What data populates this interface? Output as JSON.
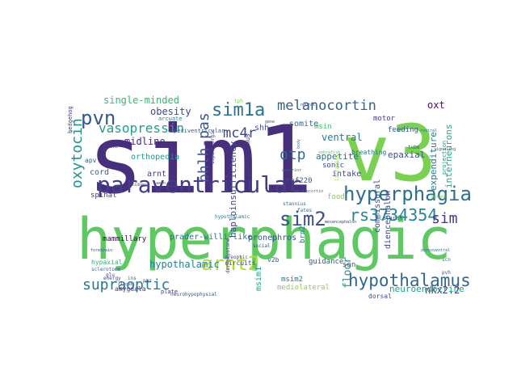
{
  "words": [
    {
      "text": "sim1",
      "color": "#472f7d"
    },
    {
      "text": "hyperphagic",
      "color": "#5ec962"
    },
    {
      "text": "v3",
      "color": "#7ad151"
    },
    {
      "text": "paraventricular",
      "color": "#433e85"
    },
    {
      "text": "hyperphagia",
      "color": "#2d708e"
    },
    {
      "text": "arnt2",
      "color": "#addc30"
    },
    {
      "text": "sim2",
      "color": "#3b518b"
    },
    {
      "text": "sim1a",
      "color": "#2c728e"
    },
    {
      "text": "pvn",
      "color": "#38588c"
    },
    {
      "text": "melanocortin",
      "color": "#33638d"
    },
    {
      "text": "rs3734354",
      "color": "#25848e"
    },
    {
      "text": "hypothalamus",
      "color": "#31688e"
    },
    {
      "text": "supraoptic",
      "color": "#2a788e"
    },
    {
      "text": "oxytocin",
      "color": "#21918c"
    },
    {
      "text": "vasopressin",
      "color": "#1f9e89"
    },
    {
      "text": "bhlh-pas",
      "color": "#3b528b"
    },
    {
      "text": "mc4r",
      "color": "#414487"
    },
    {
      "text": "otp",
      "color": "#31688e"
    },
    {
      "text": "sim",
      "color": "#443983"
    },
    {
      "text": "obesity",
      "color": "#3e4a89"
    },
    {
      "text": "single-minded",
      "color": "#35b779"
    },
    {
      "text": "midline",
      "color": "#482878"
    },
    {
      "text": "hypothalamic",
      "color": "#26828e"
    },
    {
      "text": "floor",
      "color": "#1f9a8a"
    },
    {
      "text": "nkx2.2",
      "color": "#46337f"
    },
    {
      "text": "expenditure",
      "color": "#287c8e"
    },
    {
      "text": "interneurons",
      "color": "#22a884"
    },
    {
      "text": "ventral",
      "color": "#2a788e"
    },
    {
      "text": "oxt",
      "color": "#471063"
    },
    {
      "text": "appetite",
      "color": "#2e6f8e"
    },
    {
      "text": "epaxial",
      "color": "#3b528b"
    },
    {
      "text": "intake",
      "color": "#404588"
    },
    {
      "text": "haploinsufficiency",
      "color": "#3f4788"
    },
    {
      "text": "prader-willi-like",
      "color": "#2c718e"
    },
    {
      "text": "pronephros",
      "color": "#3a548c"
    },
    {
      "text": "mammillary",
      "color": "#440154"
    },
    {
      "text": "hypaxial",
      "color": "#2db27d"
    },
    {
      "text": "neuroendocrine",
      "color": "#1fa088"
    },
    {
      "text": "mediolateral",
      "color": "#86d549"
    },
    {
      "text": "orthopedia",
      "color": "#1e9b8a"
    },
    {
      "text": "arnt",
      "color": "#424086"
    },
    {
      "text": "cord",
      "color": "#355f8d"
    },
    {
      "text": "spinal",
      "color": "#433e85"
    },
    {
      "text": "commissural",
      "color": "#3d4d8a"
    },
    {
      "text": "diencephalon",
      "color": "#3f4889"
    },
    {
      "text": "amygdala",
      "color": "#443a83"
    },
    {
      "text": "msim2",
      "color": "#2a768e"
    },
    {
      "text": "msim1",
      "color": "#1e9d89"
    },
    {
      "text": "v2b",
      "color": "#34608d"
    },
    {
      "text": "guidance",
      "color": "#375a8c"
    },
    {
      "text": "son",
      "color": "#3d4e8a"
    },
    {
      "text": "dorsal",
      "color": "#3f4889"
    },
    {
      "text": "shh",
      "color": "#3a548c"
    },
    {
      "text": "somite",
      "color": "#31688e"
    },
    {
      "text": "msin",
      "color": "#40bd72"
    },
    {
      "text": "motor",
      "color": "#424086"
    },
    {
      "text": "feeding",
      "color": "#38588c"
    },
    {
      "text": "sonic",
      "color": "#3e4989"
    },
    {
      "text": "rnf220",
      "color": "#3b528b"
    },
    {
      "text": "food",
      "color": "#7ad151"
    },
    {
      "text": "apv",
      "color": "#35608d"
    },
    {
      "text": "trunk",
      "color": "#433d84"
    },
    {
      "text": "prethalamus",
      "color": "#443983"
    },
    {
      "text": "brn2",
      "color": "#2e6e8e"
    },
    {
      "text": "hypothalamic",
      "color": "#2a788e"
    },
    {
      "text": "arcuate",
      "color": "#25838e"
    },
    {
      "text": "pvh",
      "color": "#3b518b"
    },
    {
      "text": "scn",
      "color": "#2c728e"
    },
    {
      "text": "lateral",
      "color": "#2e6d8e"
    },
    {
      "text": "circuits",
      "color": "#404588"
    },
    {
      "text": "preoptic",
      "color": "#3c508b"
    },
    {
      "text": "plate",
      "color": "#46327e"
    },
    {
      "text": "social",
      "color": "#3e4989"
    },
    {
      "text": "sclerotome",
      "color": "#355f8d"
    },
    {
      "text": "energy",
      "color": "#3f4788"
    },
    {
      "text": "breathing",
      "color": "#2c728e"
    },
    {
      "text": "neurohypophysial",
      "color": "#3b528b"
    },
    {
      "text": "mesencephalon",
      "color": "#443983"
    },
    {
      "text": "hedgehog",
      "color": "#424086"
    },
    {
      "text": "projection",
      "color": "#21918c"
    },
    {
      "text": "circuit",
      "color": "#3e4a89"
    },
    {
      "text": "stannius",
      "color": "#2e6e8e"
    },
    {
      "text": "periventricular",
      "color": "#34618d"
    },
    {
      "text": "lactation",
      "color": "#9fda3a"
    },
    {
      "text": "dopaminergic",
      "color": "#433e85"
    },
    {
      "text": "fates",
      "color": "#30698e"
    },
    {
      "text": "tube",
      "color": "#3a548c"
    },
    {
      "text": "dermomyotome",
      "color": "#404688"
    },
    {
      "text": "melanocortin",
      "color": "#2d708e"
    },
    {
      "text": "tph",
      "color": "#7ad151"
    },
    {
      "text": "gene",
      "color": "#3b528b"
    },
    {
      "text": "neural",
      "color": "#414487"
    },
    {
      "text": "zebrafish",
      "color": "#52c569"
    },
    {
      "text": "rostral",
      "color": "#2d708e"
    },
    {
      "text": "dorsoventral",
      "color": "#31688e"
    },
    {
      "text": "signaling",
      "color": "#2a788e"
    },
    {
      "text": "mutant",
      "color": "#8fd744"
    },
    {
      "text": "forebrain",
      "color": "#3b528b"
    },
    {
      "text": "axon",
      "color": "#414487"
    },
    {
      "text": "ins",
      "color": "#31688e"
    },
    {
      "text": "pas",
      "color": "#3e4989"
    },
    {
      "text": "body",
      "color": "#2a788e"
    },
    {
      "text": "anterior",
      "color": "#31688e"
    },
    {
      "text": "kidney",
      "color": "#3b528b"
    },
    {
      "text": "glu",
      "color": "#414487"
    }
  ]
}
